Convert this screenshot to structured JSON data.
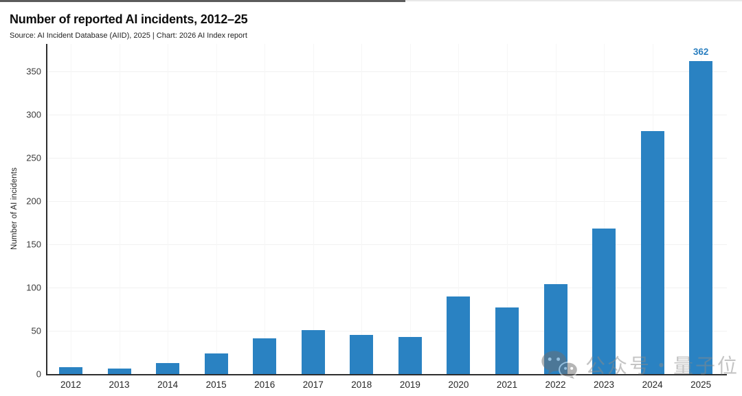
{
  "header": {
    "title": "Number of reported AI incidents, 2012–25",
    "subtitle": "Source: AI Incident Database (AIID), 2025 | Chart: 2026 AI Index report"
  },
  "chart_data": {
    "type": "bar",
    "title": "Number of reported AI incidents, 2012–25",
    "xlabel": "",
    "ylabel": "Number of AI incidents",
    "categories": [
      "2012",
      "2013",
      "2014",
      "2015",
      "2016",
      "2017",
      "2018",
      "2019",
      "2020",
      "2021",
      "2022",
      "2023",
      "2024",
      "2025"
    ],
    "values": [
      8,
      6,
      13,
      24,
      41,
      51,
      45,
      43,
      90,
      77,
      104,
      168,
      281,
      362
    ],
    "yticks": [
      0,
      50,
      100,
      150,
      200,
      250,
      300,
      350
    ],
    "ylim": [
      0,
      382
    ],
    "bar_color": "#2a82c2",
    "value_label_color": "#2a7fc0",
    "last_bar_value_label": "362",
    "grid": "faint horizontal and vertical gridlines, white background",
    "legend_position": "none"
  },
  "watermark": {
    "icon": "wechat-icon",
    "text": "公众号・量子位"
  },
  "colors": {
    "axis": "#2d2d2d",
    "title_text": "#0d0d0d",
    "tick_text": "#3a3a3a",
    "background": "#ffffff"
  }
}
